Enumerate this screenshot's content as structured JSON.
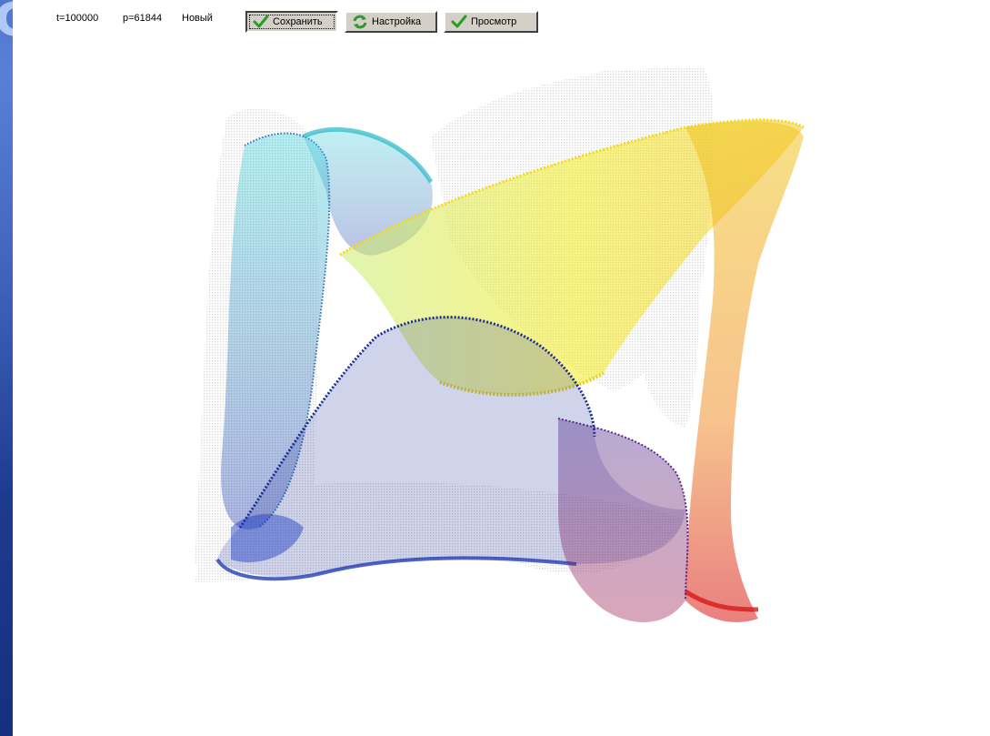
{
  "status": {
    "time": "t=100000",
    "points": "p=61844",
    "mode": "Новый"
  },
  "toolbar": {
    "save_label": "Сохранить",
    "settings_label": "Настройка",
    "view_label": "Просмотр"
  },
  "icons": {
    "save": "check-icon",
    "settings": "refresh-icon",
    "view": "check-icon"
  },
  "colors": {
    "frame_background": "#1f3f9a",
    "canvas_background": "#ffffff",
    "button_face": "#d4d0c8",
    "check_green": "#22a020",
    "refresh_green": "#2c9a2c",
    "shadow_gray": "#c8c8c8",
    "cyan": "#30c8d8",
    "navy": "#1a2a9a",
    "yellow": "#f0e020",
    "violet": "#7a2a8a",
    "red": "#e02020"
  }
}
